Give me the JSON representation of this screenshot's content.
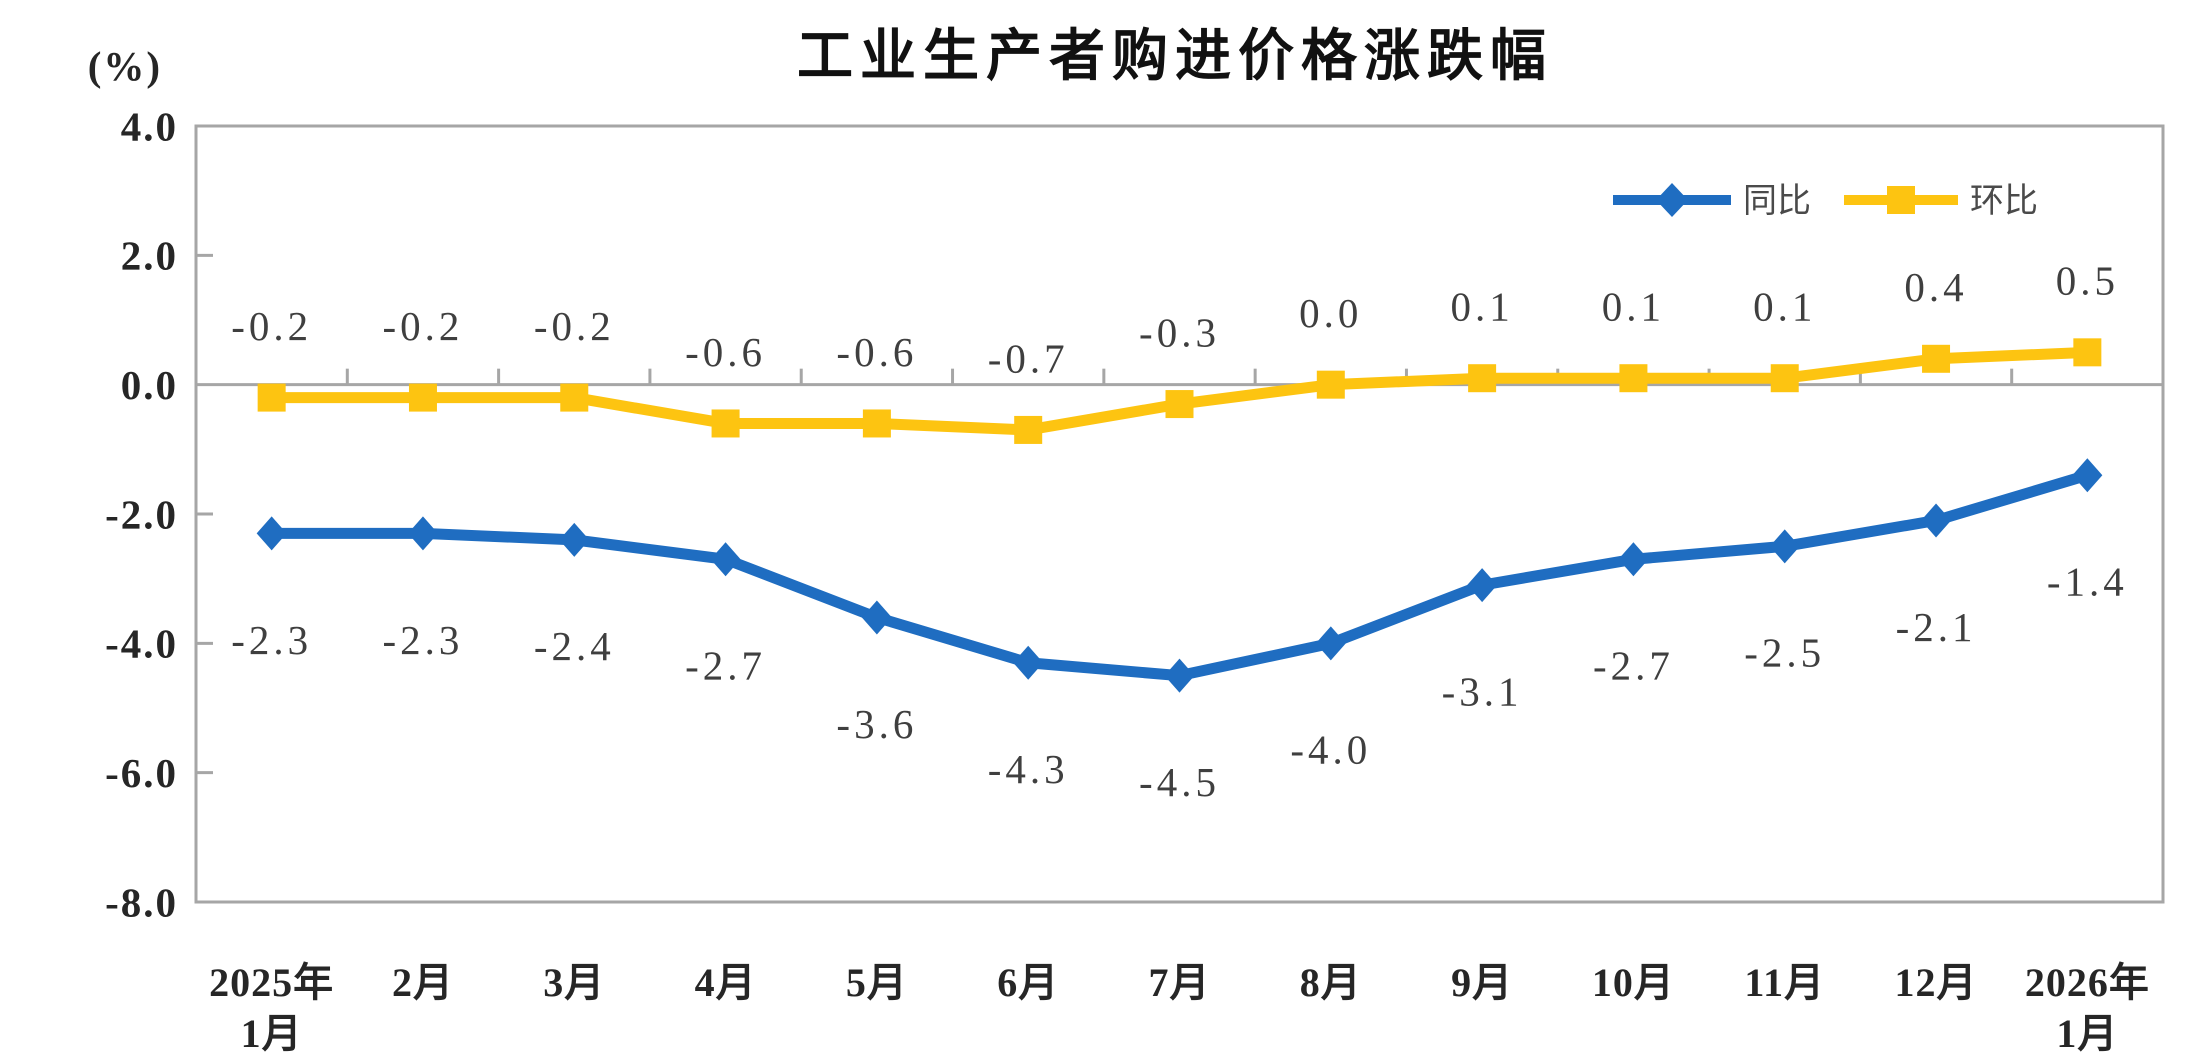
{
  "chart_data": {
    "type": "line",
    "title": "工业生产者购进价格涨跌幅",
    "y_unit": "(%)",
    "categories": [
      [
        "2025年",
        "1月"
      ],
      [
        "2月"
      ],
      [
        "3月"
      ],
      [
        "4月"
      ],
      [
        "5月"
      ],
      [
        "6月"
      ],
      [
        "7月"
      ],
      [
        "8月"
      ],
      [
        "9月"
      ],
      [
        "10月"
      ],
      [
        "11月"
      ],
      [
        "12月"
      ],
      [
        "2026年",
        "1月"
      ]
    ],
    "y_ticks": [
      "4.0",
      "2.0",
      "0.0",
      "-2.0",
      "-4.0",
      "-6.0",
      "-8.0"
    ],
    "ylim": [
      -8.0,
      4.0
    ],
    "grid": false,
    "legend_position": "top-right",
    "series": [
      {
        "name": "同比",
        "color": "#1F6DC1",
        "marker": "diamond",
        "label_position": "below",
        "values": [
          -2.3,
          -2.3,
          -2.4,
          -2.7,
          -3.6,
          -4.3,
          -4.5,
          -4.0,
          -3.1,
          -2.7,
          -2.5,
          -2.1,
          -1.4
        ],
        "labels": [
          "-2.3",
          "-2.3",
          "-2.4",
          "-2.7",
          "-3.6",
          "-4.3",
          "-4.5",
          "-4.0",
          "-3.1",
          "-2.7",
          "-2.5",
          "-2.1",
          "-1.4"
        ]
      },
      {
        "name": "环比",
        "color": "#FDC411",
        "marker": "square",
        "label_position": "above",
        "values": [
          -0.2,
          -0.2,
          -0.2,
          -0.6,
          -0.6,
          -0.7,
          -0.3,
          0.0,
          0.1,
          0.1,
          0.1,
          0.4,
          0.5
        ],
        "labels": [
          "-0.2",
          "-0.2",
          "-0.2",
          "-0.6",
          "-0.6",
          "-0.7",
          "-0.3",
          "0.0",
          "0.1",
          "0.1",
          "0.1",
          "0.4",
          "0.5"
        ]
      }
    ]
  },
  "colors": {
    "tongbi_blue": "#1F6DC1",
    "huanbi_yellow": "#FDC411",
    "axis_gray": "#A6A6A6",
    "data_label_gray": "#3F3F3F"
  }
}
